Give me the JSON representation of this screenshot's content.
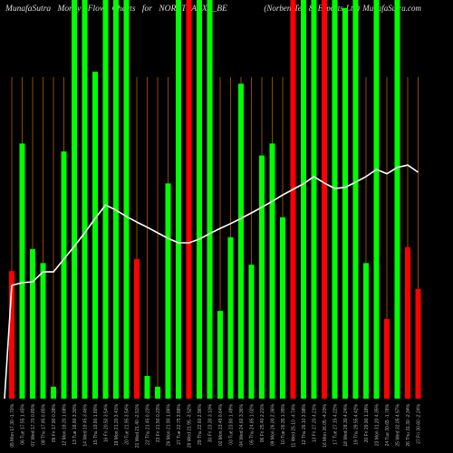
{
  "colors": {
    "background": "#000000",
    "up": "#00ff00",
    "down": "#ff0000",
    "line": "#ffffff",
    "grid": "#8f4a00",
    "title": "#dddddd",
    "tick": "#b0b0b0"
  },
  "chart_data": {
    "type": "bar",
    "title": "MunafaSutra Money Flow Charts for NORBTEAEXP_BE",
    "subtitle": "(Norben Tea & Exports Ltd) MunafaSutra.com",
    "categories": [
      "05 Mon 17.30 -1.70%",
      "06 Tue 17.55 1.45%",
      "07 Wed 17.70 0.85%",
      "08 Thu 17.85 0.85%",
      "09 Fri 17.90 0.28%",
      "12 Mon 18.20 1.68%",
      "13 Tue 18.80 3.30%",
      "14 Wed 19.45 3.46%",
      "15 Thu 19.80 1.80%",
      "16 Fri 20.50 3.54%",
      "19 Mon 21.20 3.41%",
      "20 Tue 21.95 3.54%",
      "21 Wed 21.40 -2.51%",
      "22 Thu 21.45 0.23%",
      "23 Fri 21.50 0.23%",
      "26 Mon 21.90 1.86%",
      "27 Tue 22.75 3.88%",
      "28 Wed 21.95 -3.52%",
      "29 Thu 22.60 2.96%",
      "30 Fri 23.30 3.10%",
      "02 Mon 23.45 0.64%",
      "03 Tue 23.80 1.49%",
      "04 Wed 24.60 3.36%",
      "05 Thu 24.85 1.02%",
      "06 Fri 25.40 2.21%",
      "09 Mon 26.00 2.36%",
      "10 Tue 26.35 1.35%",
      "11 Wed 25.10 -4.74%",
      "12 Thu 26.10 3.98%",
      "13 Fri 27.20 4.21%",
      "16 Mon 26.05 -4.23%",
      "17 Tue 27.15 4.22%",
      "18 Wed 28.30 4.24%",
      "19 Thu 29.55 4.42%",
      "20 Fri 29.90 1.18%",
      "23 Mon 31.20 4.35%",
      "24 Tue 30.65 -1.76%",
      "25 Wed 32.05 4.57%",
      "26 Thu 31.30 -2.34%",
      "27 Fri 30.60 -2.24%"
    ],
    "values": [
      32,
      64,
      37.5,
      34,
      3,
      62,
      100,
      100,
      82,
      100,
      100,
      100,
      35,
      5.7,
      3,
      54,
      100,
      100,
      100,
      100,
      22,
      40.5,
      79,
      33.6,
      61,
      64,
      45.5,
      100,
      100,
      100,
      100,
      100,
      98,
      100,
      34,
      100,
      20,
      100,
      38,
      27.5
    ],
    "bar_direction": [
      "down",
      "up",
      "up",
      "up",
      "up",
      "up",
      "up",
      "up",
      "up",
      "up",
      "up",
      "up",
      "down",
      "up",
      "up",
      "up",
      "up",
      "down",
      "up",
      "up",
      "up",
      "up",
      "up",
      "up",
      "up",
      "up",
      "up",
      "down",
      "up",
      "up",
      "down",
      "up",
      "up",
      "up",
      "up",
      "up",
      "down",
      "up",
      "down",
      "down"
    ],
    "line_values": [
      28.4,
      29.1,
      29.3,
      31.8,
      31.8,
      35,
      38.2,
      41.6,
      45.2,
      48.6,
      47.3,
      45.7,
      44.3,
      43,
      41.6,
      40.2,
      39.1,
      39.1,
      40,
      41.4,
      42.7,
      43.9,
      45.2,
      46.6,
      48,
      49.5,
      51.1,
      52.5,
      53.9,
      55.7,
      54.1,
      52.7,
      53,
      54.3,
      55.7,
      57.5,
      56.4,
      58,
      58.6,
      56.8
    ],
    "ylim": [
      0,
      100
    ],
    "grid": "vertical",
    "legend": "none"
  }
}
